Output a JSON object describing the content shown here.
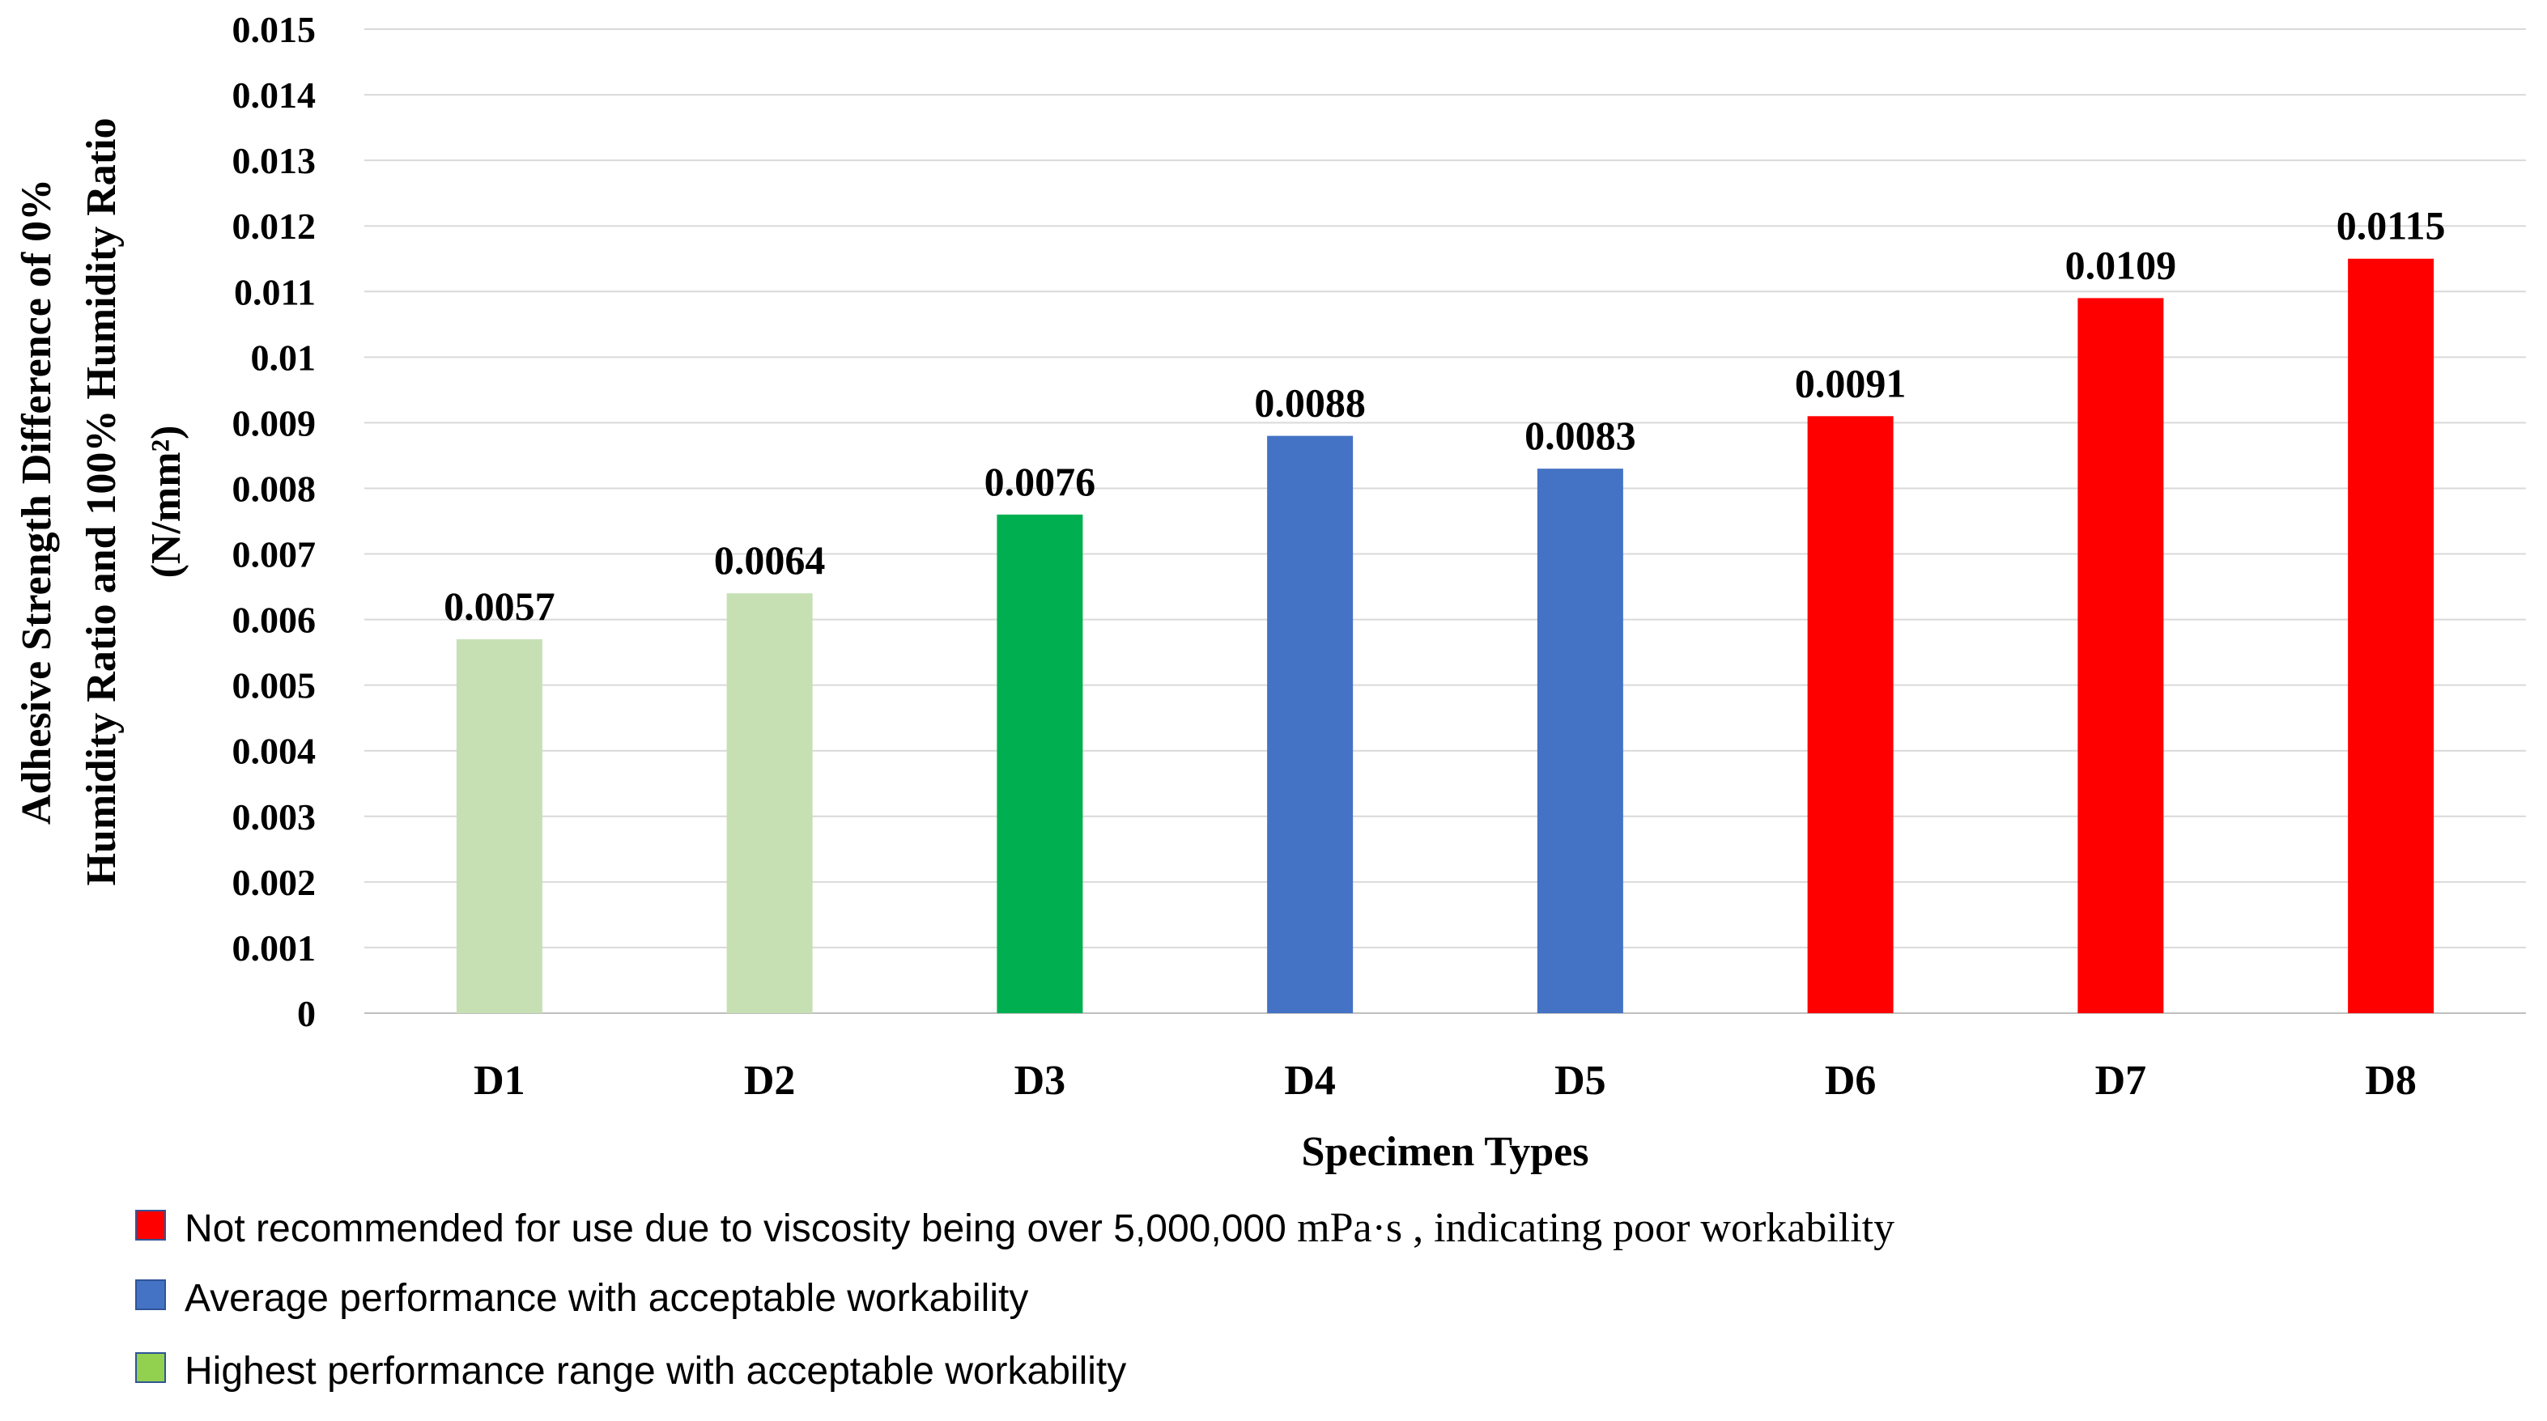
{
  "chart_data": {
    "type": "bar",
    "categories": [
      "D1",
      "D2",
      "D3",
      "D4",
      "D5",
      "D6",
      "D7",
      "D8"
    ],
    "values": [
      0.0057,
      0.0064,
      0.0076,
      0.0088,
      0.0083,
      0.0091,
      0.0109,
      0.0115
    ],
    "data_labels": [
      "0.0057",
      "0.0064",
      "0.0076",
      "0.0088",
      "0.0083",
      "0.0091",
      "0.0109",
      "0.0115"
    ],
    "bar_colors": [
      "#c6e0b4",
      "#c6e0b4",
      "#00b050",
      "#4472c4",
      "#4472c4",
      "#ff0000",
      "#ff0000",
      "#ff0000"
    ],
    "xlabel": "Specimen Types",
    "ylabel_lines": [
      "Adhesive Strength Difference of 0%",
      "Humidity Ratio and 100% Humidity Ratio",
      "(N/mm²)"
    ],
    "ylim": [
      0,
      0.015
    ],
    "yticks": [
      "0",
      "0.001",
      "0.002",
      "0.003",
      "0.004",
      "0.005",
      "0.006",
      "0.007",
      "0.008",
      "0.009",
      "0.01",
      "0.011",
      "0.012",
      "0.013",
      "0.014",
      "0.015"
    ],
    "grid": true,
    "legend_position": "bottom-left",
    "legend": [
      {
        "color": "#ff0000",
        "text": "Not recommended for use due to viscosity being over 5,000,000 ",
        "unit": "mPa·s , indicating poor workability"
      },
      {
        "color": "#4472c4",
        "text": "Average performance with acceptable workability",
        "unit": ""
      },
      {
        "color": "#92d050",
        "text": "Highest performance range with acceptable workability",
        "unit": ""
      }
    ]
  }
}
